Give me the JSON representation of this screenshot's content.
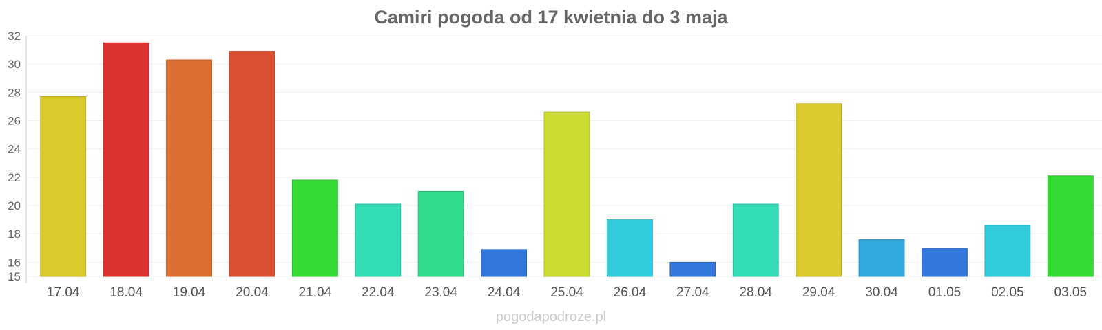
{
  "watermark": "pogodapodroze.pl",
  "chart_data": {
    "type": "bar",
    "title": "Camiri pogoda od 17 kwietnia do 3 maja",
    "categories": [
      "17.04",
      "18.04",
      "19.04",
      "20.04",
      "21.04",
      "22.04",
      "23.04",
      "24.04",
      "25.04",
      "26.04",
      "27.04",
      "28.04",
      "29.04",
      "30.04",
      "01.05",
      "02.05",
      "03.05"
    ],
    "values": [
      27.7,
      31.5,
      30.3,
      30.9,
      21.8,
      20.1,
      21.0,
      16.9,
      26.6,
      19.0,
      16.0,
      20.1,
      27.2,
      17.6,
      17.0,
      18.6,
      22.1
    ],
    "colors": [
      "#dbc930",
      "#dc3232",
      "#dc6e32",
      "#dc5032",
      "#32dc32",
      "#32dcb4",
      "#32dc8c",
      "#3278dc",
      "#ccdc32",
      "#32ccdc",
      "#3278dc",
      "#32dcb4",
      "#dbc930",
      "#32a8dc",
      "#3278dc",
      "#32ccdc",
      "#32dc32"
    ],
    "yticks": [
      15,
      16,
      18,
      20,
      22,
      24,
      26,
      28,
      30,
      32
    ],
    "ylim": [
      15,
      32
    ],
    "grid": true,
    "legend": "none"
  }
}
